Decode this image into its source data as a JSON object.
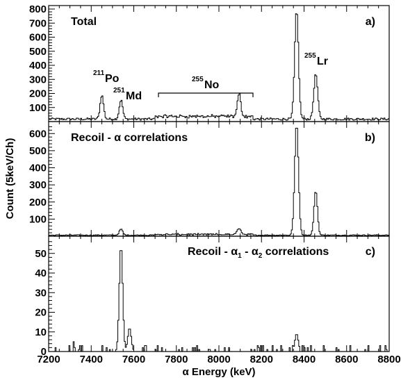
{
  "chart_data": {
    "type": "line",
    "xlabel": "α Energy (keV)",
    "ylabel": "Count (5keV/Ch)",
    "x_ticks": [
      "7200",
      "7400",
      "7600",
      "7800",
      "8000",
      "8200",
      "8400",
      "8600",
      "8800"
    ],
    "xlim": [
      7200,
      8800
    ],
    "panels": [
      {
        "letter": "a)",
        "title": "Total",
        "ylim": [
          0,
          800
        ],
        "y_ticks": [
          "100",
          "200",
          "300",
          "400",
          "500",
          "600",
          "700",
          "800"
        ],
        "peaks": [
          {
            "x": 7450,
            "y": 170
          },
          {
            "x": 7540,
            "y": 135
          },
          {
            "x": 8095,
            "y": 160
          },
          {
            "x": 8365,
            "y": 770
          },
          {
            "x": 8455,
            "y": 320
          }
        ],
        "labels": [
          {
            "mass": "211",
            "element": "Po"
          },
          {
            "mass": "251",
            "element": "Md"
          },
          {
            "mass": "255",
            "element": "No",
            "range": [
              7700,
              8160
            ]
          },
          {
            "mass": "255",
            "element": "Lr"
          }
        ]
      },
      {
        "letter": "b)",
        "title": "Recoil - α correlations",
        "ylim": [
          0,
          650
        ],
        "y_ticks": [
          "100",
          "200",
          "300",
          "400",
          "500",
          "600"
        ],
        "peaks": [
          {
            "x": 7540,
            "y": 35
          },
          {
            "x": 8095,
            "y": 40
          },
          {
            "x": 8365,
            "y": 650
          },
          {
            "x": 8455,
            "y": 260
          }
        ]
      },
      {
        "letter": "c)",
        "title_parts": [
          "Recoil - α",
          "1",
          " - α",
          "2",
          " correlations"
        ],
        "ylim": [
          0,
          57
        ],
        "y_ticks": [
          "0",
          "10",
          "20",
          "30",
          "40",
          "50"
        ],
        "peaks": [
          {
            "x": 7540,
            "y": 54
          },
          {
            "x": 7580,
            "y": 12
          },
          {
            "x": 8365,
            "y": 9
          }
        ]
      }
    ]
  }
}
